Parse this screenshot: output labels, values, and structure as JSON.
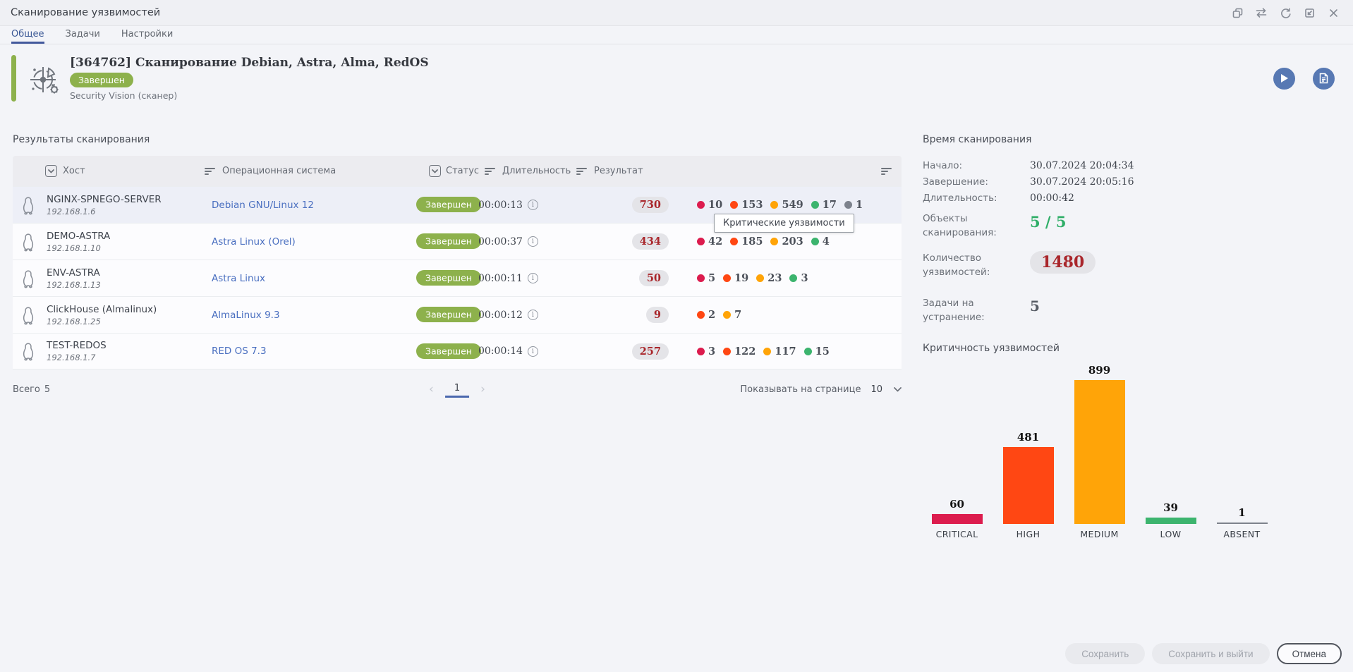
{
  "window": {
    "title": "Сканирование уязвимостей"
  },
  "tabs": [
    {
      "label": "Общее",
      "active": true
    },
    {
      "label": "Задачи",
      "active": false
    },
    {
      "label": "Настройки",
      "active": false
    }
  ],
  "header": {
    "title": "[364762] Сканирование Debian, Astra, Alma, RedOS",
    "status": "Завершен",
    "scanner": "Security Vision (сканер)"
  },
  "results": {
    "section_title": "Результаты сканирования",
    "columns": [
      "Хост",
      "Операционная система",
      "Статус",
      "Длительность",
      "Результат"
    ],
    "rows": [
      {
        "host": "NGINX-SPNEGO-SERVER",
        "ip": "192.168.1.6",
        "os": "Debian GNU/Linux 12",
        "status": "Завершен",
        "duration": "00:00:13",
        "total": "730",
        "counts": [
          {
            "level": "critical",
            "value": "10"
          },
          {
            "level": "high",
            "value": "153"
          },
          {
            "level": "medium",
            "value": "549"
          },
          {
            "level": "low",
            "value": "17"
          },
          {
            "level": "absent",
            "value": "1"
          }
        ]
      },
      {
        "host": "DEMO-ASTRA",
        "ip": "192.168.1.10",
        "os": "Astra Linux (Orel)",
        "status": "Завершен",
        "duration": "00:00:37",
        "total": "434",
        "counts": [
          {
            "level": "critical",
            "value": "42"
          },
          {
            "level": "high",
            "value": "185"
          },
          {
            "level": "medium",
            "value": "203"
          },
          {
            "level": "low",
            "value": "4"
          }
        ]
      },
      {
        "host": "ENV-ASTRA",
        "ip": "192.168.1.13",
        "os": "Astra Linux",
        "status": "Завершен",
        "duration": "00:00:11",
        "total": "50",
        "counts": [
          {
            "level": "critical",
            "value": "5"
          },
          {
            "level": "high",
            "value": "19"
          },
          {
            "level": "medium",
            "value": "23"
          },
          {
            "level": "low",
            "value": "3"
          }
        ]
      },
      {
        "host": "ClickHouse (Almalinux)",
        "ip": "192.168.1.25",
        "os": "AlmaLinux 9.3",
        "status": "Завершен",
        "duration": "00:00:12",
        "total": "9",
        "counts": [
          {
            "level": "high",
            "value": "2"
          },
          {
            "level": "medium",
            "value": "7"
          }
        ]
      },
      {
        "host": "TEST-REDOS",
        "ip": "192.168.1.7",
        "os": "RED OS 7.3",
        "status": "Завершен",
        "duration": "00:00:14",
        "total": "257",
        "counts": [
          {
            "level": "critical",
            "value": "3"
          },
          {
            "level": "high",
            "value": "122"
          },
          {
            "level": "medium",
            "value": "117"
          },
          {
            "level": "low",
            "value": "15"
          }
        ]
      }
    ],
    "tooltip": "Критические уязвимости",
    "pagination": {
      "total_label": "Всего",
      "total": "5",
      "page": "1",
      "per_page_label": "Показывать на странице",
      "per_page": "10"
    }
  },
  "summary": {
    "title": "Время сканирования",
    "rows": [
      {
        "label": "Начало:",
        "value": "30.07.2024 20:04:34"
      },
      {
        "label": "Завершение:",
        "value": "30.07.2024 20:05:16"
      },
      {
        "label": "Длительность:",
        "value": "00:00:42"
      }
    ],
    "stats": [
      {
        "label": "Объекты сканирования:",
        "value": "5 / 5"
      },
      {
        "label": "Количество уязвимостей:",
        "value": "1480"
      },
      {
        "label": "Задачи на устранение:",
        "value": "5"
      }
    ]
  },
  "chart_data": {
    "type": "bar",
    "title": "Критичность уязвимостей",
    "categories": [
      "CRITICAL",
      "HIGH",
      "MEDIUM",
      "LOW",
      "ABSENT"
    ],
    "values": [
      60,
      481,
      899,
      39,
      1
    ],
    "colors": [
      "#dc1c4e",
      "#ff4713",
      "#ffa408",
      "#3cb46e",
      "#7d828c"
    ],
    "ylim": [
      0,
      899
    ],
    "grid": false,
    "legend": false,
    "value_labels": true
  },
  "footer": {
    "save": "Сохранить",
    "save_and_exit": "Сохранить и выйти",
    "cancel": "Отмена"
  },
  "colors": {
    "accent_green": "#8db14c",
    "link": "#4a6fc0",
    "count_text": "#a9262b",
    "objects_value": "#2fae68",
    "severity": {
      "critical": "#dc1c4e",
      "high": "#ff4713",
      "medium": "#ffa408",
      "low": "#3cb46e",
      "absent": "#7d828c"
    }
  }
}
